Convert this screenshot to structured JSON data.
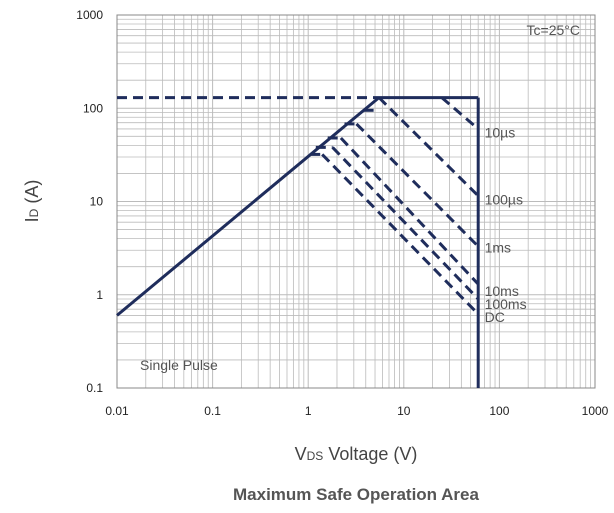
{
  "chart_data": {
    "type": "line",
    "title": "Maximum Safe Operation Area",
    "xlabel": {
      "main": "V",
      "sub": "DS",
      "rest": " Voltage (V)"
    },
    "ylabel": {
      "main": "I",
      "sub": "D",
      "rest": " (A)"
    },
    "x_scale": "log",
    "y_scale": "log",
    "xlim": [
      0.01,
      1000
    ],
    "ylim": [
      0.1,
      1000
    ],
    "x_ticks": [
      "0.01",
      "0.1",
      "1",
      "10",
      "100",
      "1000"
    ],
    "y_ticks": [
      "0.1",
      "1",
      "10",
      "100",
      "1000"
    ],
    "grid": true,
    "annotations": {
      "temperature": "Tc=25°C",
      "pulse": "Single Pulse"
    },
    "colors": {
      "line": "#1f2d5c",
      "grid": "#bbbbbb",
      "frame": "#888888",
      "text": "#222222"
    },
    "limits": [
      {
        "name": "rds-on-limit",
        "style": "solid",
        "x": [
          0.01,
          5.5
        ],
        "y": [
          0.6,
          130
        ]
      },
      {
        "name": "current-limit",
        "style": "dashed",
        "x": [
          0.01,
          5.5
        ],
        "y": [
          130,
          130
        ]
      },
      {
        "name": "current-limit-solid",
        "style": "solid",
        "x": [
          5.5,
          60
        ],
        "y": [
          130,
          130
        ]
      },
      {
        "name": "voltage-limit",
        "style": "solid",
        "x": [
          60,
          60
        ],
        "y": [
          130,
          0.1
        ]
      }
    ],
    "series": [
      {
        "name": "10µs",
        "style": "dashed",
        "x": [
          25,
          60
        ],
        "y": [
          130,
          60
        ]
      },
      {
        "name": "100µs",
        "style": "dashed",
        "x": [
          5.5,
          60
        ],
        "y": [
          130,
          11.5
        ]
      },
      {
        "name": "1ms",
        "style": "dashed",
        "x": [
          3.2,
          60
        ],
        "y": [
          68,
          3.3
        ]
      },
      {
        "name": "10ms",
        "style": "dashed",
        "x": [
          2.2,
          60
        ],
        "y": [
          48,
          1.3
        ]
      },
      {
        "name": "100ms",
        "style": "dashed",
        "x": [
          1.8,
          60
        ],
        "y": [
          38,
          0.9
        ]
      },
      {
        "name": "DC",
        "style": "dashed",
        "x": [
          1.4,
          60
        ],
        "y": [
          32,
          0.62
        ]
      }
    ],
    "series_extras": [
      {
        "style": "dashed",
        "x": [
          3.8,
          5.5
        ],
        "y": [
          95,
          95
        ]
      },
      {
        "style": "dashed",
        "x": [
          2.4,
          3.2
        ],
        "y": [
          68,
          68
        ]
      },
      {
        "style": "dashed",
        "x": [
          1.6,
          2.2
        ],
        "y": [
          48,
          48
        ]
      },
      {
        "style": "dashed",
        "x": [
          1.2,
          1.8
        ],
        "y": [
          38,
          38
        ]
      },
      {
        "style": "dashed",
        "x": [
          1.05,
          1.4
        ],
        "y": [
          32,
          32
        ]
      }
    ],
    "series_labels": [
      {
        "text": "10µs",
        "x": 70,
        "y": 55
      },
      {
        "text": "100µs",
        "x": 70,
        "y": 10.5
      },
      {
        "text": "1ms",
        "x": 70,
        "y": 3.2
      },
      {
        "text": "10ms",
        "x": 70,
        "y": 1.1
      },
      {
        "text": "100ms",
        "x": 70,
        "y": 0.8
      },
      {
        "text": "DC",
        "x": 70,
        "y": 0.58
      }
    ]
  }
}
